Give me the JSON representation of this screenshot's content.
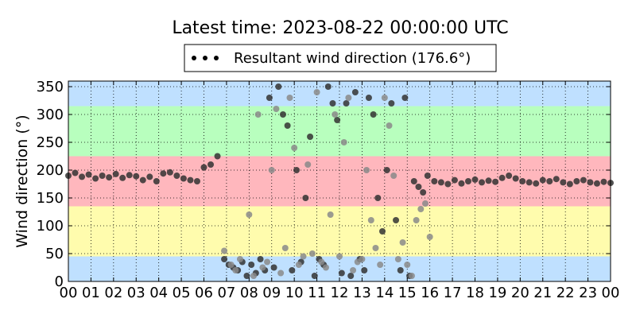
{
  "chart_data": {
    "type": "scatter",
    "title": "Latest time: 2023-08-22 00:00:00 UTC",
    "xlabel": "",
    "ylabel": "Wind direction (°)",
    "xlim": [
      0,
      24
    ],
    "ylim": [
      0,
      360
    ],
    "x_ticks": [
      "00",
      "01",
      "02",
      "03",
      "04",
      "05",
      "06",
      "07",
      "08",
      "09",
      "10",
      "11",
      "12",
      "13",
      "14",
      "15",
      "16",
      "17",
      "18",
      "19",
      "20",
      "21",
      "22",
      "23",
      "00"
    ],
    "y_ticks": [
      0,
      50,
      100,
      150,
      200,
      250,
      300,
      350
    ],
    "grid": true,
    "legend_position": "top-center",
    "series": [
      {
        "name": "Resultant wind direction (176.6°)",
        "x_unit": "hour",
        "x": [
          0.0,
          0.3,
          0.6,
          0.9,
          1.2,
          1.5,
          1.8,
          2.1,
          2.4,
          2.7,
          3.0,
          3.3,
          3.6,
          3.9,
          4.2,
          4.5,
          4.8,
          5.1,
          5.4,
          5.7,
          6.0,
          6.3,
          6.6,
          6.9,
          7.1,
          7.3,
          7.5,
          7.7,
          7.9,
          8.1,
          8.3,
          8.5,
          8.7,
          8.9,
          9.1,
          9.3,
          9.5,
          9.7,
          9.9,
          10.1,
          10.3,
          10.5,
          10.7,
          10.9,
          11.1,
          11.3,
          11.5,
          11.7,
          11.9,
          12.1,
          12.3,
          12.5,
          12.7,
          12.9,
          13.1,
          13.3,
          13.5,
          13.7,
          13.9,
          14.1,
          14.3,
          14.5,
          14.7,
          14.9,
          15.1,
          15.3,
          15.5,
          15.7,
          15.9,
          16.2,
          16.5,
          16.8,
          17.1,
          17.4,
          17.7,
          18.0,
          18.3,
          18.6,
          18.9,
          19.2,
          19.5,
          19.8,
          20.1,
          20.4,
          20.7,
          21.0,
          21.3,
          21.6,
          21.9,
          22.2,
          22.5,
          22.8,
          23.1,
          23.4,
          23.7,
          24.0
        ],
        "y": [
          190,
          195,
          188,
          192,
          185,
          190,
          187,
          193,
          186,
          191,
          189,
          182,
          188,
          180,
          194,
          196,
          190,
          185,
          182,
          180,
          205,
          210,
          225,
          40,
          30,
          25,
          20,
          35,
          10,
          30,
          15,
          40,
          20,
          330,
          25,
          350,
          300,
          280,
          20,
          200,
          35,
          150,
          260,
          10,
          40,
          30,
          350,
          320,
          290,
          15,
          320,
          10,
          340,
          40,
          20,
          330,
          300,
          150,
          90,
          200,
          320,
          110,
          20,
          330,
          10,
          180,
          170,
          160,
          190,
          180,
          178,
          175,
          182,
          176,
          180,
          183,
          178,
          181,
          179,
          186,
          190,
          185,
          180,
          178,
          176,
          182,
          180,
          184,
          178,
          175,
          180,
          182,
          178,
          176,
          179,
          177
        ],
        "size": [],
        "color": "#333333"
      },
      {
        "name": "",
        "x_unit": "hour",
        "x": [
          6.9,
          7.2,
          7.4,
          7.6,
          8.0,
          8.2,
          8.4,
          8.6,
          8.8,
          9.0,
          9.2,
          9.4,
          9.6,
          9.8,
          10.0,
          10.2,
          10.4,
          10.6,
          10.8,
          11.0,
          11.2,
          11.4,
          11.6,
          11.8,
          12.0,
          12.2,
          12.4,
          12.6,
          12.8,
          13.0,
          13.2,
          13.4,
          13.6,
          13.8,
          14.0,
          14.2,
          14.4,
          14.6,
          14.8,
          15.0,
          15.2,
          15.4,
          15.6,
          15.8,
          16.0
        ],
        "y": [
          55,
          30,
          20,
          40,
          120,
          10,
          300,
          25,
          35,
          200,
          310,
          15,
          60,
          330,
          240,
          30,
          45,
          210,
          50,
          340,
          35,
          25,
          120,
          300,
          45,
          250,
          330,
          20,
          35,
          40,
          200,
          110,
          60,
          30,
          330,
          280,
          190,
          40,
          70,
          30,
          10,
          110,
          130,
          140,
          80
        ],
        "size": [],
        "color": "#8a8a8a"
      }
    ],
    "bands": [
      {
        "from": 0,
        "to": 45,
        "color": "#bfe0ff"
      },
      {
        "from": 45,
        "to": 135,
        "color": "#fffcad"
      },
      {
        "from": 135,
        "to": 225,
        "color": "#ffb7bd"
      },
      {
        "from": 225,
        "to": 315,
        "color": "#b8ffbe"
      },
      {
        "from": 315,
        "to": 360,
        "color": "#bfe0ff"
      }
    ]
  }
}
